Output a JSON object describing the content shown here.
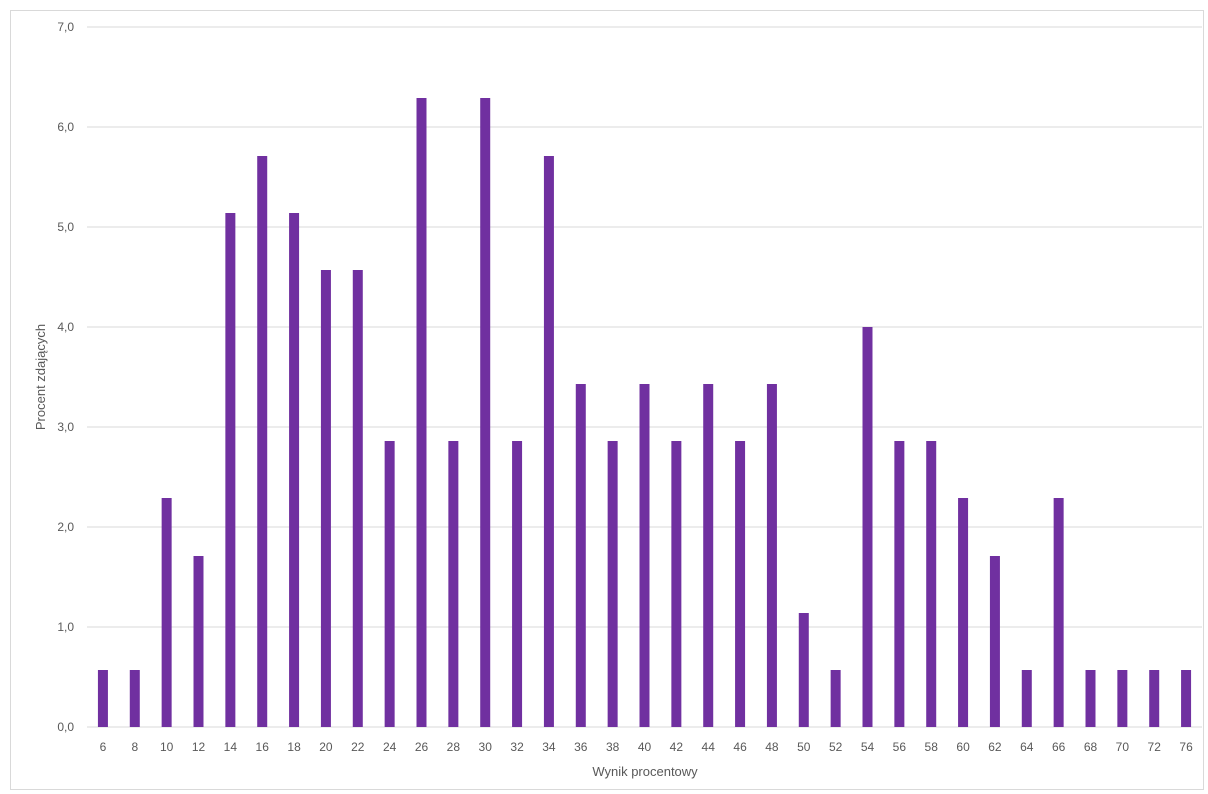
{
  "chart_data": {
    "type": "bar",
    "xlabel": "Wynik procentowy",
    "ylabel": "Procent zdających",
    "ylim": [
      0,
      7
    ],
    "yticks": [
      "0,0",
      "1,0",
      "2,0",
      "3,0",
      "4,0",
      "5,0",
      "6,0",
      "7,0"
    ],
    "grid": true,
    "bar_color": "#7030A0",
    "grid_color": "#d9d9d9",
    "categories": [
      "6",
      "8",
      "10",
      "12",
      "14",
      "16",
      "18",
      "20",
      "22",
      "24",
      "26",
      "28",
      "30",
      "32",
      "34",
      "36",
      "38",
      "40",
      "42",
      "44",
      "46",
      "48",
      "50",
      "52",
      "54",
      "56",
      "58",
      "60",
      "62",
      "64",
      "66",
      "68",
      "70",
      "72",
      "76"
    ],
    "values": [
      0.57,
      0.57,
      2.29,
      1.71,
      5.14,
      5.71,
      5.14,
      4.57,
      4.57,
      2.86,
      6.29,
      2.86,
      6.29,
      2.86,
      5.71,
      3.43,
      2.86,
      3.43,
      2.86,
      3.43,
      2.86,
      3.43,
      1.14,
      0.57,
      4.0,
      2.86,
      2.86,
      2.29,
      1.71,
      0.57,
      2.29,
      0.57,
      0.57,
      0.57,
      0.57
    ]
  }
}
